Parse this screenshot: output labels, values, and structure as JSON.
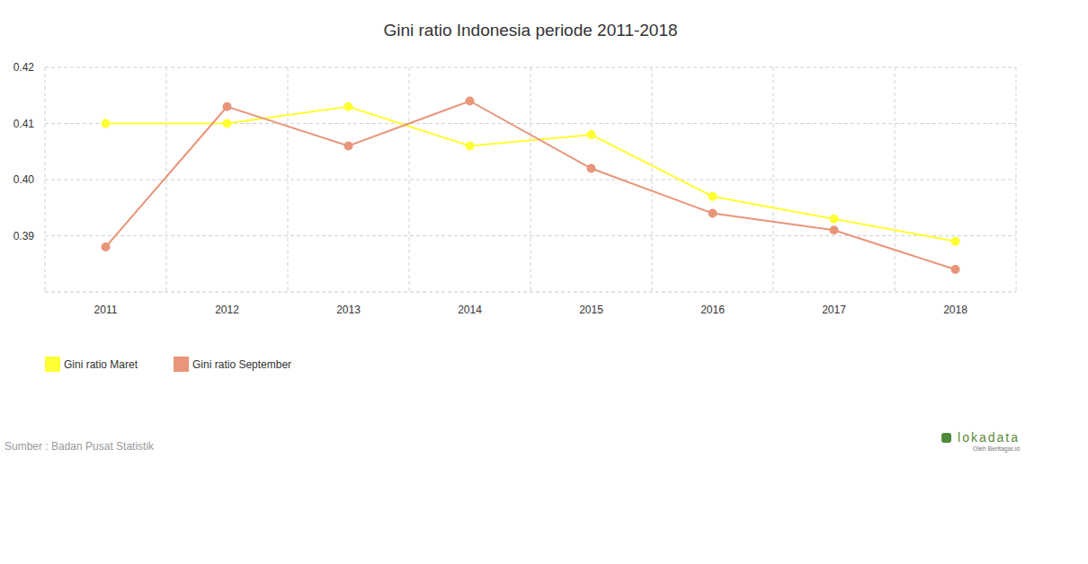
{
  "chart_data": {
    "type": "line",
    "title": "Gini ratio Indonesia periode 2011-2018",
    "categories": [
      "2011",
      "2012",
      "2013",
      "2014",
      "2015",
      "2016",
      "2017",
      "2018"
    ],
    "series": [
      {
        "name": "Gini ratio Maret",
        "color": "#ffff33",
        "values": [
          0.41,
          0.41,
          0.413,
          0.406,
          0.408,
          0.397,
          0.393,
          0.389
        ]
      },
      {
        "name": "Gini ratio September",
        "color": "#e8957a",
        "values": [
          0.388,
          0.413,
          0.406,
          0.414,
          0.402,
          0.394,
          0.391,
          0.384
        ]
      }
    ],
    "ylim": [
      0.38,
      0.42
    ],
    "yticks": [
      0.39,
      {
        "value": 0.4,
        "label": "0.40"
      },
      0.41,
      0.42
    ],
    "grid": true,
    "legend": "bottom-left",
    "marker": "circle",
    "line_style": "solid",
    "annotations": [
      "Sumber : Badan Pusat Statistik",
      "lokadata",
      "Oleh Beritagar.id"
    ]
  }
}
